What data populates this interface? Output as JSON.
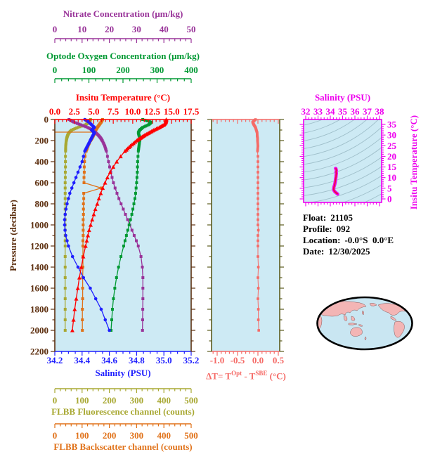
{
  "colors": {
    "background": "#ffffff",
    "panel_bg": "#cdeaf4",
    "nitrate": "#993399",
    "oxygen": "#009933",
    "temperature": "#ff0000",
    "pressure_axis": "#5c2e0e",
    "salinity": "#1f1fff",
    "fluorescence": "#a8a832",
    "backscatter": "#e07118",
    "delta_t": "#f56a66",
    "mid_rail": "#5c5c1e",
    "ts_frame": "#ee00ee",
    "ts_curve_core": "#ee1133",
    "contour": "#9fbfca",
    "map_land": "#f3b5b5",
    "map_ocean": "#c9e6f2",
    "map_outline": "#000000",
    "info_text": "#000000"
  },
  "titles": {
    "nitrate": "Nitrate Concentration (μm/kg)",
    "oxygen": "Optode Oxygen Concentration (μm/kg)",
    "temperature": "Insitu Temperature (°C)",
    "pressure": "Pressure (decibar)",
    "salinity": "Salinity (PSU)",
    "fluorescence": "FLBB Fluorescence channel (counts)",
    "backscatter": "FLBB Backscatter channel (counts)",
    "delta_t_parts": {
      "p1": "ΔT= T",
      "sup1": "Opt",
      "p2": " - T",
      "sup2": "SBE",
      "p3": " (°C)"
    },
    "ts_salinity": "Salinity (PSU)",
    "ts_temperature": "Insitu Temperature (°C)"
  },
  "ticks": {
    "nitrate": [
      "0",
      "10",
      "20",
      "30",
      "40",
      "50"
    ],
    "oxygen": [
      "0",
      "100",
      "200",
      "300",
      "400"
    ],
    "temperature": [
      "0.0",
      "2.5",
      "5.0",
      "7.5",
      "10.0",
      "12.5",
      "15.0",
      "17.5"
    ],
    "pressure": [
      "0",
      "200",
      "400",
      "600",
      "800",
      "1000",
      "1200",
      "1400",
      "1600",
      "1800",
      "2000",
      "2200"
    ],
    "salinity": [
      "34.2",
      "34.4",
      "34.6",
      "34.8",
      "35.0",
      "35.2"
    ],
    "fluorescence": [
      "0",
      "100",
      "200",
      "300",
      "400",
      "500"
    ],
    "backscatter": [
      "0",
      "100",
      "200",
      "300",
      "400",
      "500"
    ],
    "delta_t": [
      "-1.0",
      "-0.5",
      "0.0",
      "0.5"
    ],
    "ts_salinity": [
      "32",
      "33",
      "34",
      "35",
      "36",
      "37",
      "38"
    ],
    "ts_temperature": [
      "0",
      "5",
      "10",
      "15",
      "20",
      "25",
      "30",
      "35"
    ]
  },
  "info": {
    "float_label": "Float:",
    "float_value": "21105",
    "profile_label": "Profile:",
    "profile_value": "092",
    "location_label": "Location:",
    "location_value": "-0.0°S  0.0°E",
    "date_label": "Date:",
    "date_value": "12/30/2025"
  },
  "chart_data": {
    "type": "line",
    "profile_plot": {
      "ylabel": "Pressure (decibar)",
      "ylim": [
        0,
        2200
      ],
      "pressure": [
        0,
        25,
        50,
        75,
        100,
        125,
        150,
        175,
        200,
        250,
        300,
        350,
        400,
        450,
        500,
        550,
        600,
        650,
        700,
        750,
        800,
        850,
        900,
        950,
        1000,
        1050,
        1100,
        1150,
        1200,
        1300,
        1400,
        1500,
        1600,
        1700,
        1800,
        1900,
        2000
      ],
      "series": [
        {
          "name": "Insitu Temperature (°C)",
          "color_key": "temperature",
          "marker": "triangle",
          "xlim": [
            0,
            17.5
          ],
          "values": [
            14.3,
            14.25,
            14.0,
            13.4,
            12.7,
            12.1,
            11.5,
            11.0,
            10.5,
            9.7,
            9.0,
            8.45,
            7.95,
            7.5,
            7.1,
            6.75,
            6.45,
            6.15,
            5.9,
            5.65,
            5.45,
            5.2,
            5.0,
            4.8,
            4.6,
            4.4,
            4.25,
            4.1,
            3.95,
            3.65,
            3.4,
            3.15,
            2.95,
            2.75,
            2.55,
            2.4,
            2.25
          ]
        },
        {
          "name": "Salinity (PSU)",
          "color_key": "salinity",
          "marker": "circle",
          "xlim": [
            34.2,
            35.2
          ],
          "values": [
            34.42,
            34.45,
            34.47,
            34.49,
            34.47,
            34.49,
            34.48,
            34.47,
            34.46,
            34.44,
            34.42,
            34.41,
            34.4,
            34.385,
            34.37,
            34.355,
            34.34,
            34.325,
            34.31,
            34.3,
            34.29,
            34.282,
            34.276,
            34.272,
            34.272,
            34.275,
            34.28,
            34.29,
            34.3,
            34.33,
            34.37,
            34.41,
            34.46,
            34.5,
            34.54,
            34.57,
            34.6
          ]
        },
        {
          "name": "Optode Oxygen Concentration (μm/kg)",
          "color_key": "oxygen",
          "marker": "square",
          "xlim": [
            0,
            400
          ],
          "values": [
            258,
            284,
            275,
            258,
            249,
            245,
            247,
            250,
            249,
            247,
            245,
            244,
            243,
            242.5,
            242,
            241,
            240,
            238.5,
            237,
            235,
            232,
            229,
            226,
            222,
            218,
            214,
            210,
            206,
            202,
            194,
            187,
            181,
            176,
            172,
            169,
            167,
            165
          ]
        },
        {
          "name": "Nitrate Concentration (μm/kg)",
          "color_key": "nitrate",
          "marker": "square",
          "xlim": [
            0,
            50
          ],
          "values": [
            5.2,
            7.0,
            9.5,
            12.0,
            13.8,
            15.0,
            16.0,
            16.8,
            17.4,
            18.3,
            18.9,
            19.3,
            19.7,
            20.1,
            20.5,
            21.0,
            21.5,
            22.1,
            22.8,
            23.5,
            24.3,
            25.1,
            25.9,
            26.7,
            27.5,
            28.3,
            29.1,
            29.9,
            30.6,
            31.6,
            32.1,
            32.3,
            32.3,
            32.3,
            32.25,
            32.2,
            32.15
          ]
        },
        {
          "name": "FLBB Fluorescence channel (counts)",
          "color_key": "fluorescence",
          "marker": "square",
          "xlim": [
            0,
            500
          ],
          "values": [
            131,
            128,
            112,
            85,
            62,
            52,
            47,
            44,
            42,
            40,
            39.5,
            39,
            39,
            39,
            38.5,
            38.5,
            38,
            38,
            38,
            38,
            38,
            38,
            38,
            38,
            38,
            38,
            38,
            38,
            38,
            38,
            38,
            38,
            38,
            38,
            38,
            38,
            38
          ]
        },
        {
          "name": "FLBB Backscatter channel (counts)",
          "color_key": "backscatter",
          "marker": "square",
          "xlim": [
            0,
            500
          ],
          "spike_at_pressure": 120,
          "spike_extent": [
            0,
            147
          ],
          "values": [
            175,
            170,
            163,
            156,
            150,
            146,
            142,
            137,
            131,
            122,
            115,
            111,
            109,
            108,
            108,
            107,
            107,
            170,
            106,
            106,
            105,
            105,
            105,
            104,
            104,
            104,
            104,
            103,
            103,
            103,
            103,
            102,
            102,
            102,
            101,
            101,
            101
          ]
        }
      ]
    },
    "delta_t_plot": {
      "xlabel": "ΔT= TOpt - TSBE (°C)",
      "xlim": [
        -1.14,
        0.53
      ],
      "ylim": [
        0,
        2200
      ],
      "values": [
        -0.06,
        -0.13,
        -0.1,
        -0.06,
        -0.04,
        -0.02,
        -0.02,
        -0.01,
        -0.01,
        0.0,
        -0.01,
        0.0,
        0.0,
        0.0,
        0.0,
        0.0,
        0.0,
        0.0,
        0.0,
        0.0,
        0.0,
        0.0,
        0.0,
        0.0,
        0.0,
        0.01,
        0.0,
        0.0,
        0.0,
        0.0,
        0.01,
        0.0,
        0.01,
        0.0,
        0.01,
        0.01,
        0.02
      ]
    },
    "ts_plot": {
      "xlabel": "Salinity (PSU)",
      "xlim": [
        32,
        38
      ],
      "ylabel": "Insitu Temperature (°C)",
      "ylim": [
        0,
        35
      ],
      "curve": "temperature-vs-salinity from profile_plot series",
      "isopycnal_contours": true
    }
  }
}
